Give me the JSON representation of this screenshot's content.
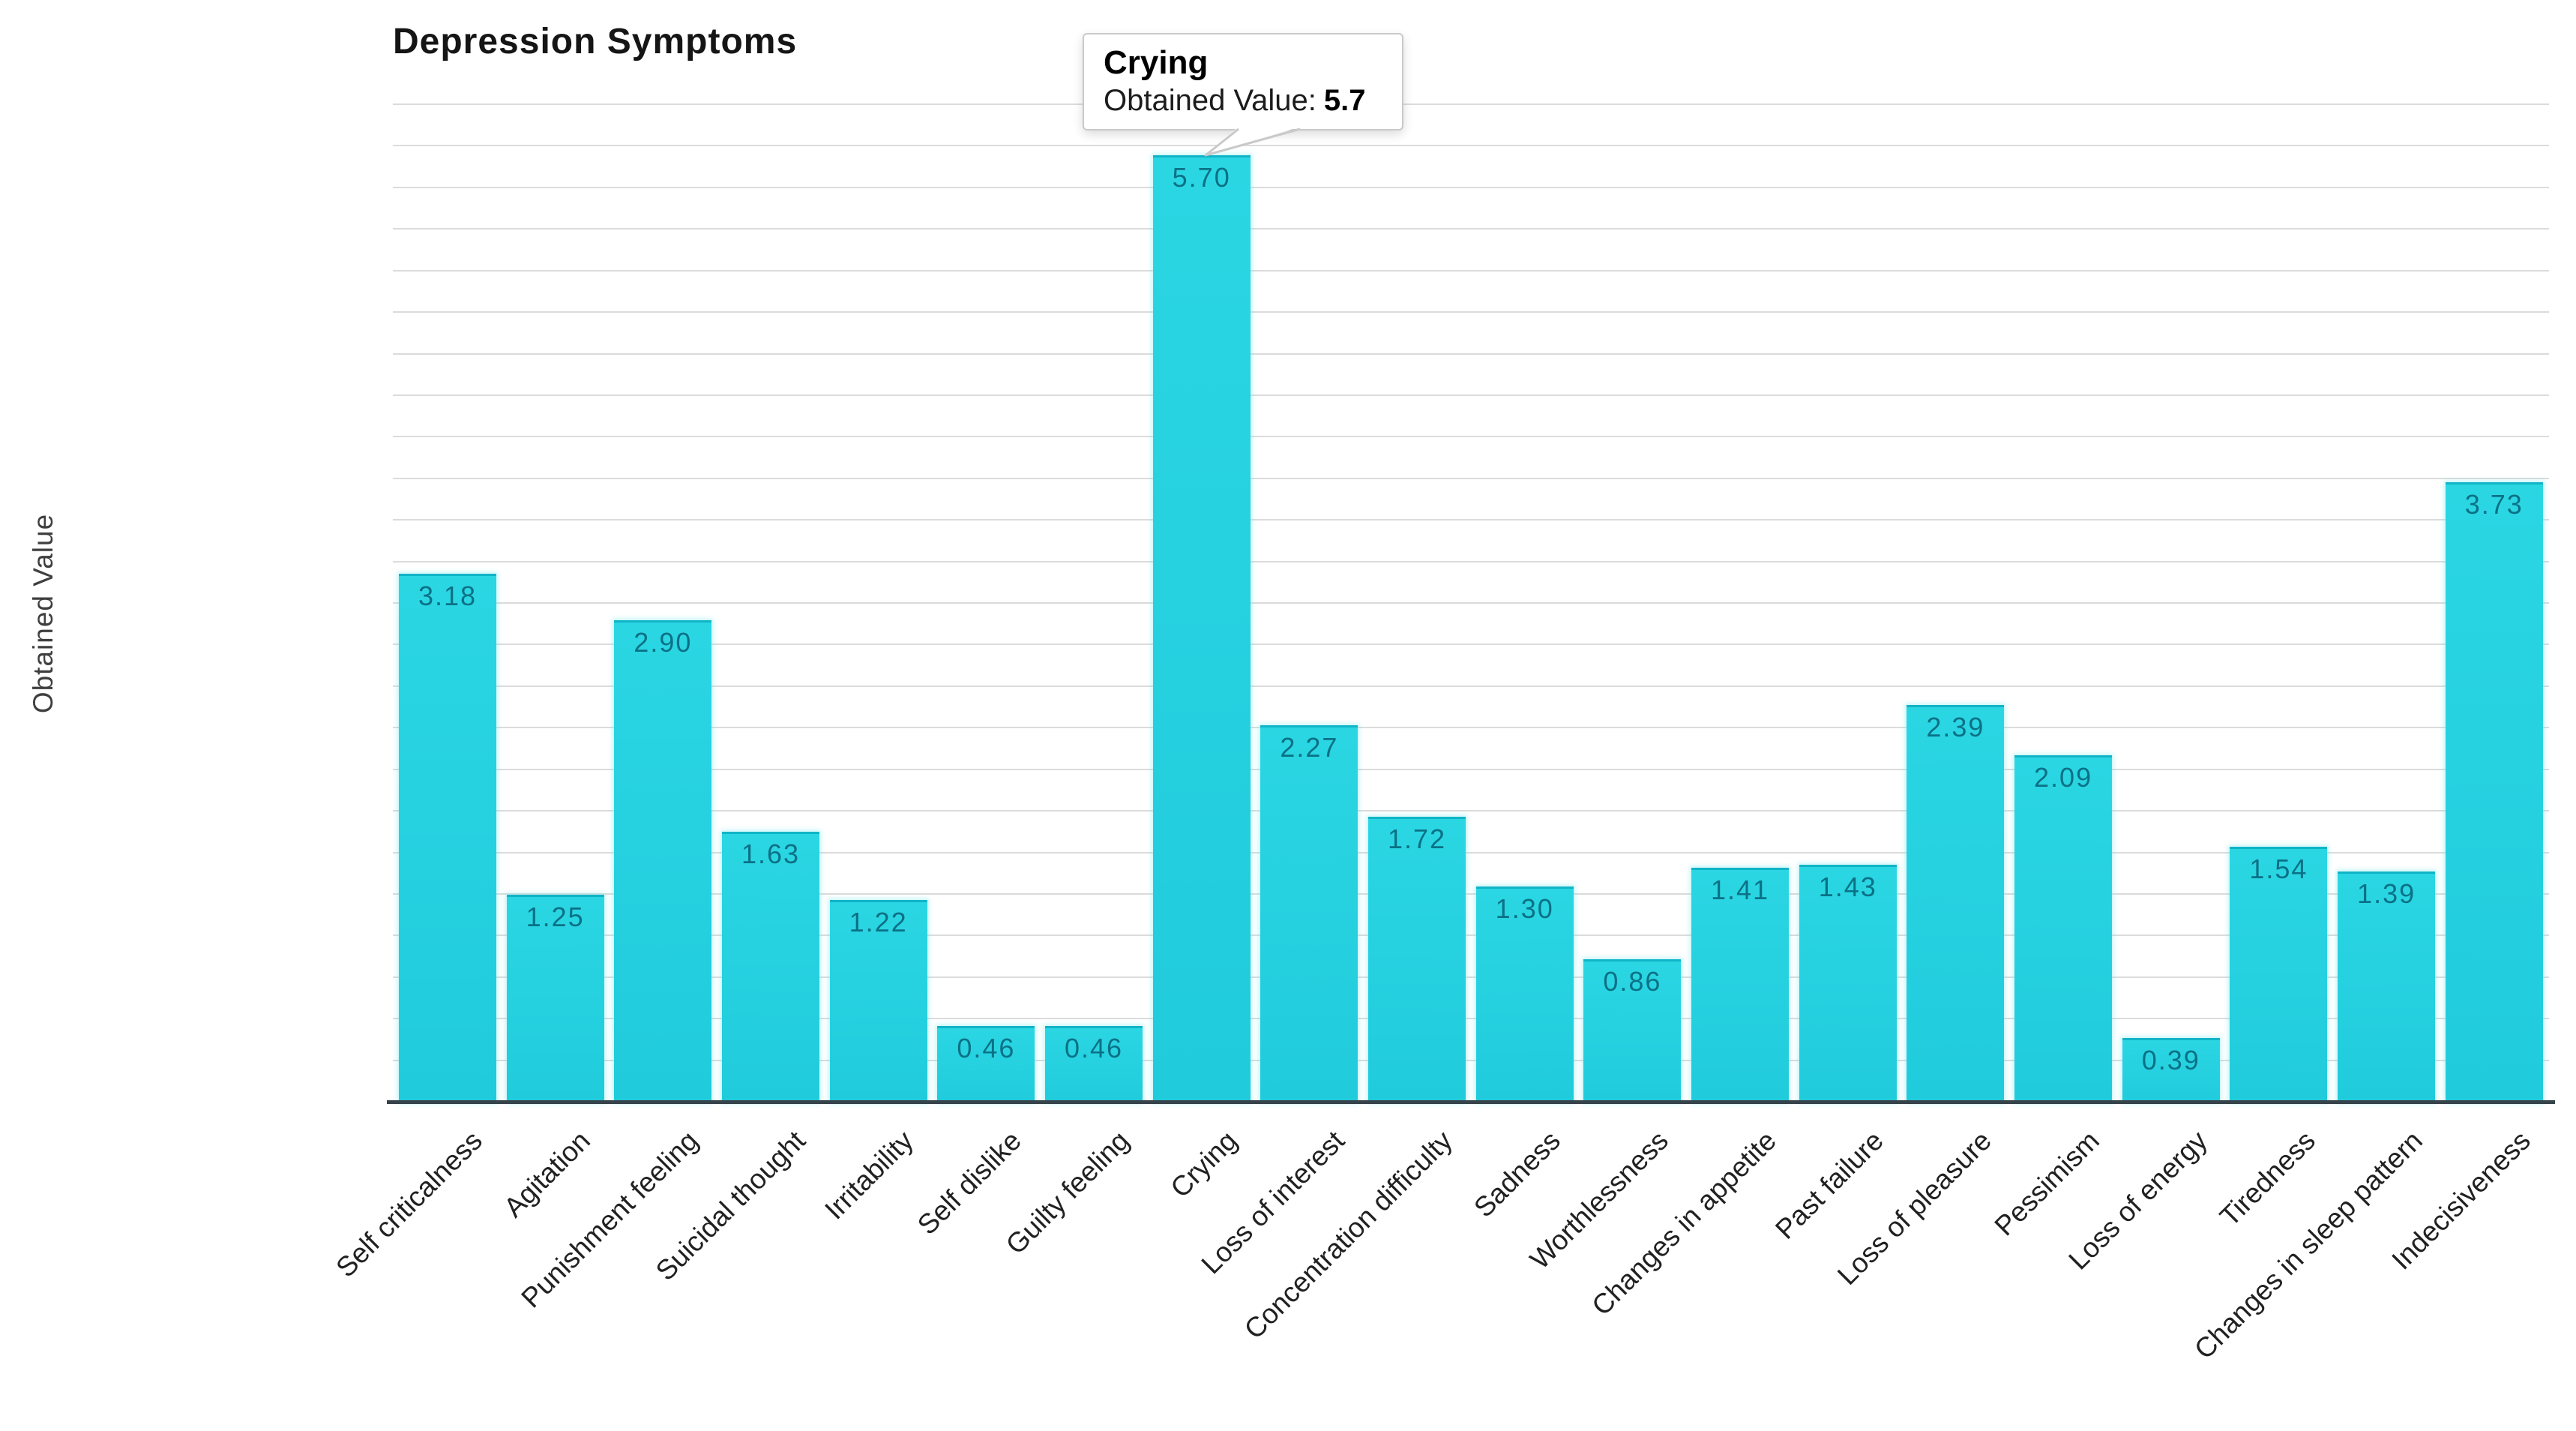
{
  "title": "Depression Symptoms",
  "y_axis_label": "Obtained Value",
  "tooltip": {
    "title": "Crying",
    "label": "Obtained Value:",
    "value": "5.7",
    "highlighted_category": "Crying"
  },
  "chart_data": {
    "type": "bar",
    "title": "Depression Symptoms",
    "xlabel": "",
    "ylabel": "Obtained Value",
    "categories": [
      "Self criticalness",
      "Agitation",
      "Punishment feeling",
      "Suicidal thought",
      "Irritability",
      "Self dislike",
      "Guilty feeling",
      "Crying",
      "Loss of interest",
      "Concentration difficulty",
      "Sadness",
      "Worthlessness",
      "Changes in appetite",
      "Past failure",
      "Loss of pleasure",
      "Pessimism",
      "Loss of energy",
      "Tiredness",
      "Changes in sleep pattern",
      "Indecisiveness"
    ],
    "values": [
      3.18,
      1.25,
      2.9,
      1.63,
      1.22,
      0.46,
      0.46,
      5.7,
      2.27,
      1.72,
      1.3,
      0.86,
      1.41,
      1.43,
      2.39,
      2.09,
      0.39,
      1.54,
      1.39,
      3.73
    ],
    "ylim": [
      0,
      6
    ],
    "grid_step": 0.25,
    "grid": true,
    "legend": "none",
    "x_label_rotation_deg": -45,
    "bar_color": "#22cfdd",
    "bar_top_edge_color": "#10b4c7",
    "bar_value_text_color": "#0b7186",
    "gridline_color": "#dbdbdb",
    "axis_line_color": "#36434a"
  }
}
